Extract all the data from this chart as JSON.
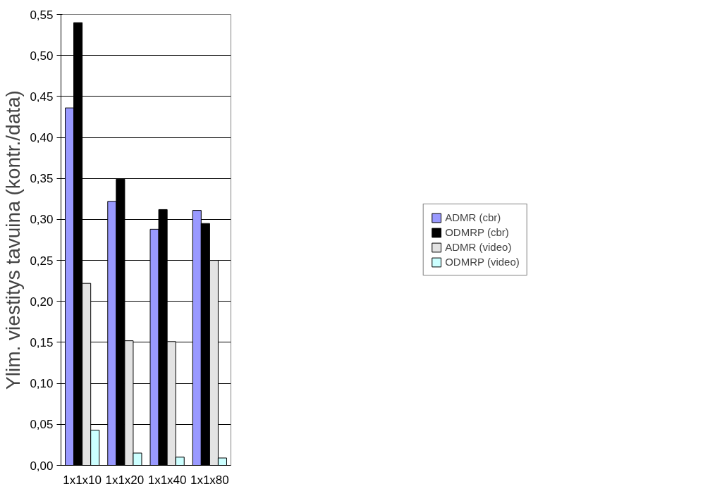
{
  "chart_data": {
    "type": "bar",
    "ylabel": "Ylim. viestitys tavuina (kontr./data)",
    "categories": [
      "1x1x10",
      "1x1x20",
      "1x1x40",
      "1x1x80"
    ],
    "series": [
      {
        "name": "ADMR (cbr)",
        "color": "#9999ff",
        "values": [
          0.436,
          0.322,
          0.288,
          0.311
        ]
      },
      {
        "name": "ODMRP (cbr)",
        "color": "#000000",
        "values": [
          0.54,
          0.349,
          0.312,
          0.295
        ]
      },
      {
        "name": "ADMR (video)",
        "color": "#e3e3e3",
        "values": [
          0.222,
          0.152,
          0.151,
          0.25
        ]
      },
      {
        "name": "ODMRP (video)",
        "color": "#ccffff",
        "values": [
          0.043,
          0.015,
          0.01,
          0.009
        ]
      }
    ],
    "ylim": [
      0,
      0.55
    ],
    "yticks": [
      {
        "value": 0,
        "label": "0,00"
      },
      {
        "value": 0.05,
        "label": "0,05"
      },
      {
        "value": 0.1,
        "label": "0,10"
      },
      {
        "value": 0.15,
        "label": "0,15"
      },
      {
        "value": 0.2,
        "label": "0,20"
      },
      {
        "value": 0.25,
        "label": "0,25"
      },
      {
        "value": 0.3,
        "label": "0,30"
      },
      {
        "value": 0.35,
        "label": "0,35"
      },
      {
        "value": 0.4,
        "label": "0,40"
      },
      {
        "value": 0.45,
        "label": "0,45"
      },
      {
        "value": 0.5,
        "label": "0,50"
      },
      {
        "value": 0.55,
        "label": "0,55"
      }
    ],
    "grid": "y",
    "legend": "right"
  }
}
